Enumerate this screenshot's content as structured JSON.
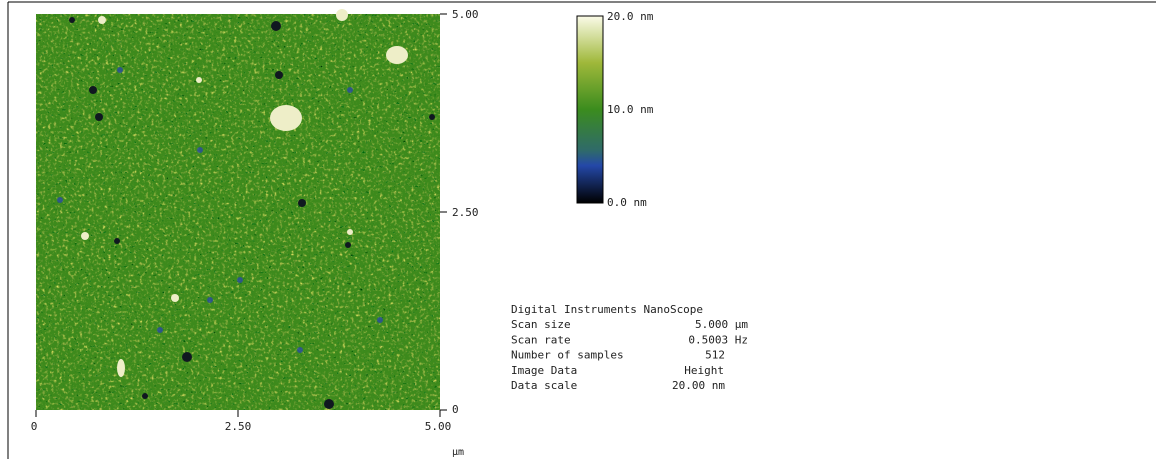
{
  "image": {
    "x_ticks": [
      "0",
      "2.50",
      "5.00"
    ],
    "x_unit": "µm",
    "y_ticks": [
      "5.00",
      "2.50",
      "0"
    ]
  },
  "colorbar": {
    "labels": [
      "20.0 nm",
      "10.0 nm",
      "0.0 nm"
    ]
  },
  "info": {
    "title": "Digital Instruments NanoScope",
    "rows": [
      [
        "Scan size",
        "5.000 µm"
      ],
      [
        "Scan rate",
        "0.5003 Hz"
      ],
      [
        "Number of samples",
        "512"
      ],
      [
        "Image Data",
        "Height"
      ],
      [
        "Data scale",
        "20.00 nm"
      ]
    ]
  }
}
